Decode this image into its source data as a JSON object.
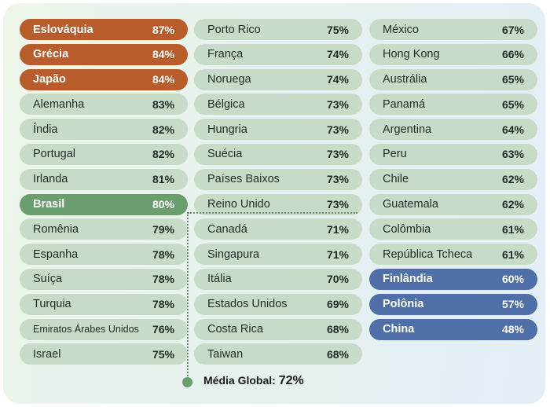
{
  "chart_data": {
    "type": "table",
    "rows": [
      {
        "country": "Eslováquia",
        "value": "87%",
        "highlight": "orange"
      },
      {
        "country": "Grécia",
        "value": "84%",
        "highlight": "orange"
      },
      {
        "country": "Japão",
        "value": "84%",
        "highlight": "orange"
      },
      {
        "country": "Alemanha",
        "value": "83%"
      },
      {
        "country": "Índia",
        "value": "82%"
      },
      {
        "country": "Portugal",
        "value": "82%"
      },
      {
        "country": "Irlanda",
        "value": "81%"
      },
      {
        "country": "Brasil",
        "value": "80%",
        "highlight": "green"
      },
      {
        "country": "Romênia",
        "value": "79%"
      },
      {
        "country": "Espanha",
        "value": "78%"
      },
      {
        "country": "Suíça",
        "value": "78%"
      },
      {
        "country": "Turquia",
        "value": "78%"
      },
      {
        "country": "Emiratos Árabes Unidos",
        "value": "76%"
      },
      {
        "country": "Israel",
        "value": "75%"
      },
      {
        "country": "Porto Rico",
        "value": "75%"
      },
      {
        "country": "França",
        "value": "74%"
      },
      {
        "country": "Noruega",
        "value": "74%"
      },
      {
        "country": "Bélgica",
        "value": "73%"
      },
      {
        "country": "Hungria",
        "value": "73%"
      },
      {
        "country": "Suécia",
        "value": "73%"
      },
      {
        "country": "Países Baixos",
        "value": "73%"
      },
      {
        "country": "Reino Unido",
        "value": "73%"
      },
      {
        "country": "Canadá",
        "value": "71%"
      },
      {
        "country": "Singapura",
        "value": "71%"
      },
      {
        "country": "Itália",
        "value": "70%"
      },
      {
        "country": "Estados Unidos",
        "value": "69%"
      },
      {
        "country": "Costa Rica",
        "value": "68%"
      },
      {
        "country": "Taiwan",
        "value": "68%"
      },
      {
        "country": "México",
        "value": "67%"
      },
      {
        "country": "Hong Kong",
        "value": "66%"
      },
      {
        "country": "Austrália",
        "value": "65%"
      },
      {
        "country": "Panamá",
        "value": "65%"
      },
      {
        "country": "Argentina",
        "value": "64%"
      },
      {
        "country": "Peru",
        "value": "63%"
      },
      {
        "country": "Chile",
        "value": "62%"
      },
      {
        "country": "Guatemala",
        "value": "62%"
      },
      {
        "country": "Colômbia",
        "value": "61%"
      },
      {
        "country": "República Tcheca",
        "value": "61%"
      },
      {
        "country": "Finlândia",
        "value": "60%",
        "highlight": "blue"
      },
      {
        "country": "Polônia",
        "value": "57%",
        "highlight": "blue"
      },
      {
        "country": "China",
        "value": "48%",
        "highlight": "blue"
      }
    ],
    "global_average": {
      "label": "Média Global:",
      "value": "72%"
    },
    "colors": {
      "default_pill": "#c6dcc9",
      "orange": "#b85c2c",
      "green": "#6a9e6e",
      "blue": "#4f6fa8"
    }
  }
}
